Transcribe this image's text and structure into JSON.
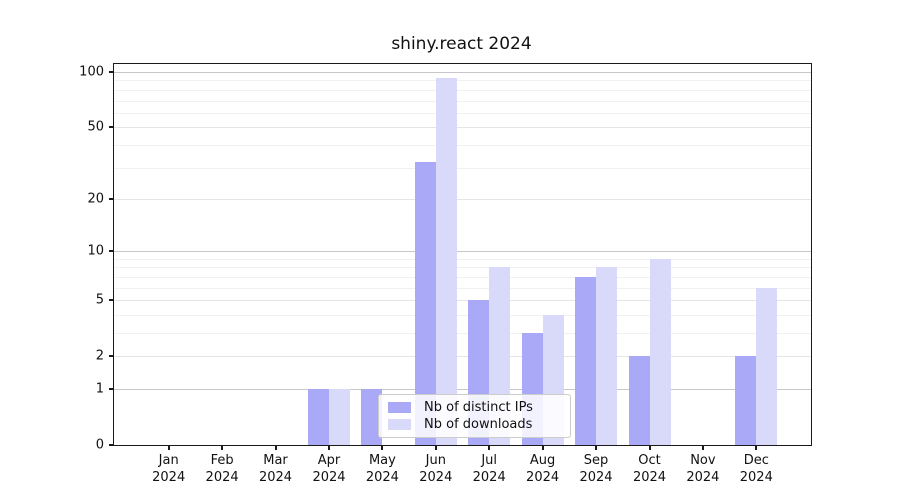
{
  "chart_data": {
    "type": "bar",
    "title": "shiny.react 2024",
    "categories": [
      "Jan",
      "Feb",
      "Mar",
      "Apr",
      "May",
      "Jun",
      "Jul",
      "Aug",
      "Sep",
      "Oct",
      "Nov",
      "Dec"
    ],
    "x_year_label": "2024",
    "series": [
      {
        "name": "Nb of distinct IPs",
        "color": "#a9a9f7",
        "values": [
          0,
          0,
          0,
          1,
          1,
          32,
          5,
          3,
          7,
          2,
          0,
          2
        ]
      },
      {
        "name": "Nb of downloads",
        "color": "#d9d9fa",
        "values": [
          0,
          0,
          0,
          1,
          0,
          93,
          8,
          4,
          8,
          9,
          0,
          6
        ]
      }
    ],
    "yaxis": {
      "scale": "log10(1+y)",
      "ylim": [
        0,
        100
      ],
      "ticks": [
        {
          "value": 0,
          "label": "0"
        },
        {
          "value": 1,
          "label": "1"
        },
        {
          "value": 2,
          "label": "2"
        },
        {
          "value": 5,
          "label": "5"
        },
        {
          "value": 10,
          "label": "10"
        },
        {
          "value": 20,
          "label": "20"
        },
        {
          "value": 50,
          "label": "50"
        },
        {
          "value": 100,
          "label": "100"
        }
      ],
      "minor_ticks": [
        3,
        4,
        6,
        7,
        8,
        9,
        30,
        40,
        60,
        70,
        80,
        90
      ],
      "grid": true
    },
    "legend": {
      "position": "bottom-center-inside",
      "entries": [
        "Nb of distinct IPs",
        "Nb of downloads"
      ]
    }
  }
}
